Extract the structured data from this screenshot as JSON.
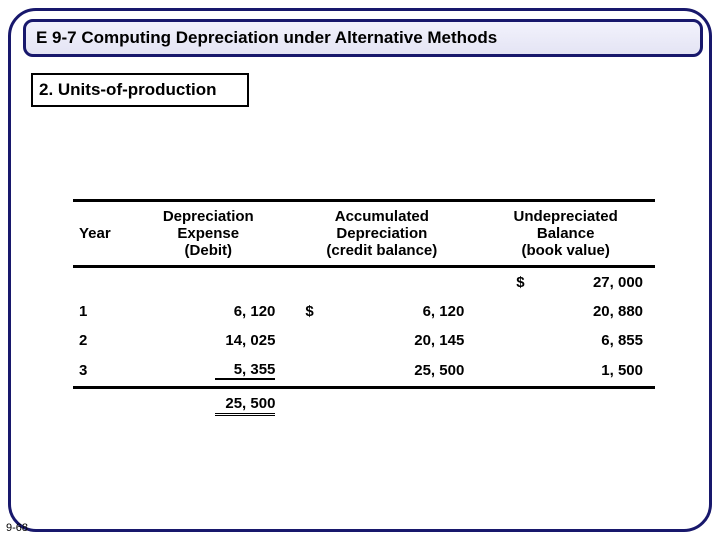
{
  "title": "E 9-7 Computing Depreciation under Alternative Methods",
  "subtitle": "2. Units-of-production",
  "pageNumber": "9-68",
  "table": {
    "headers": {
      "year": "Year",
      "expense": "Depreciation Expense (Debit)",
      "accumulated": "Accumulated Depreciation (credit balance)",
      "balance": "Undepreciated Balance (book value)"
    },
    "initialRow": {
      "balance_dollar": "$",
      "balance": "27, 000"
    },
    "rows": [
      {
        "year": "1",
        "expense": "6, 120",
        "acc_dollar": "$",
        "accumulated": "6, 120",
        "balance": "20, 880"
      },
      {
        "year": "2",
        "expense": "14, 025",
        "accumulated": "20, 145",
        "balance": "6, 855"
      },
      {
        "year": "3",
        "expense": "5, 355",
        "accumulated": "25, 500",
        "balance": "1, 500"
      }
    ],
    "total": "25, 500"
  },
  "colors": {
    "frameBorder": "#18186c",
    "titleBgTop": "#f2f2fc",
    "titleBgBottom": "#e4e4f4",
    "text": "#000000",
    "background": "#ffffff"
  }
}
